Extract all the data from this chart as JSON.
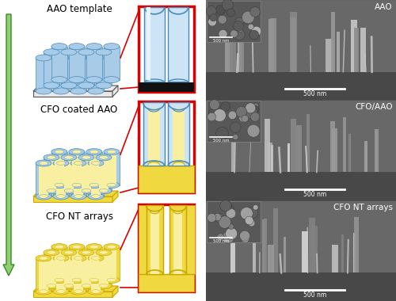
{
  "bg_color": "#ffffff",
  "arrow_green_light": "#90d070",
  "arrow_green_dark": "#3a8a2a",
  "blue_fill": "#a8cce8",
  "blue_dark": "#4a8ab8",
  "blue_light": "#cce4f5",
  "blue_mid": "#88bbdd",
  "yellow_fill": "#f0d840",
  "yellow_dark": "#c8a800",
  "yellow_light": "#f8f0a0",
  "yellow_mid": "#e8c820",
  "substrate_fill": "#e8e8e8",
  "substrate_edge": "#555555",
  "red_border": "#dd0000",
  "label1": "AAO template",
  "label2": "CFO coated AAO",
  "label3": "CFO NT arrays",
  "sem_label1": "AAO",
  "sem_label2": "CFO/AAO",
  "sem_label3": "CFO NT arrays",
  "scale_bar": "500 nm",
  "fig_width": 5.0,
  "fig_height": 3.8
}
